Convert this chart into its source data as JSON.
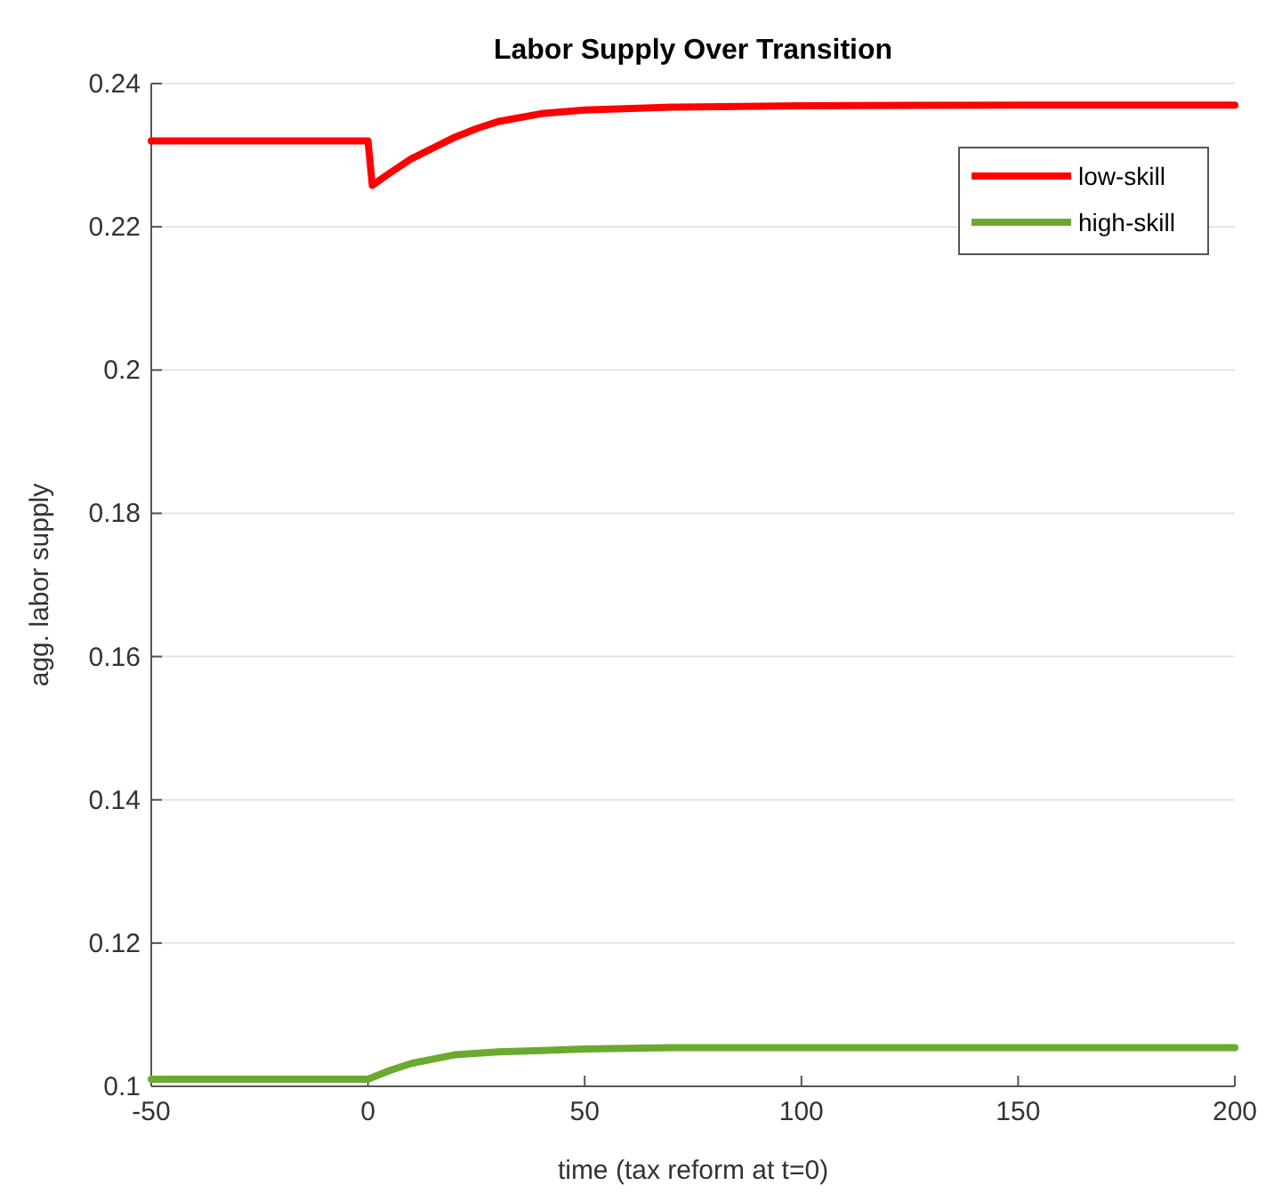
{
  "chart_data": {
    "type": "line",
    "title": "Labor Supply Over Transition",
    "xlabel": "time (tax reform at t=0)",
    "ylabel": "agg. labor supply",
    "xlim": [
      -50,
      200
    ],
    "ylim": [
      0.1,
      0.24
    ],
    "xticks": [
      -50,
      0,
      50,
      100,
      150,
      200
    ],
    "yticks": [
      0.1,
      0.12,
      0.14,
      0.16,
      0.18,
      0.2,
      0.22,
      0.24
    ],
    "grid": "y",
    "legend": "top right",
    "line_style": "solid",
    "series": [
      {
        "name": "low-skill",
        "color": "#ff0000",
        "x": [
          -50,
          0,
          1,
          5,
          10,
          15,
          20,
          25,
          30,
          40,
          50,
          70,
          100,
          150,
          200
        ],
        "values": [
          0.232,
          0.232,
          0.2258,
          0.2275,
          0.2295,
          0.231,
          0.2325,
          0.2337,
          0.2347,
          0.2358,
          0.2363,
          0.2367,
          0.2369,
          0.237,
          0.237
        ]
      },
      {
        "name": "high-skill",
        "color": "#6aaa2e",
        "x": [
          -50,
          0,
          5,
          10,
          15,
          20,
          30,
          40,
          50,
          70,
          100,
          150,
          200
        ],
        "values": [
          0.101,
          0.101,
          0.1022,
          0.1032,
          0.1038,
          0.1044,
          0.1048,
          0.105,
          0.1052,
          0.1054,
          0.1054,
          0.1054,
          0.1054
        ]
      }
    ]
  }
}
